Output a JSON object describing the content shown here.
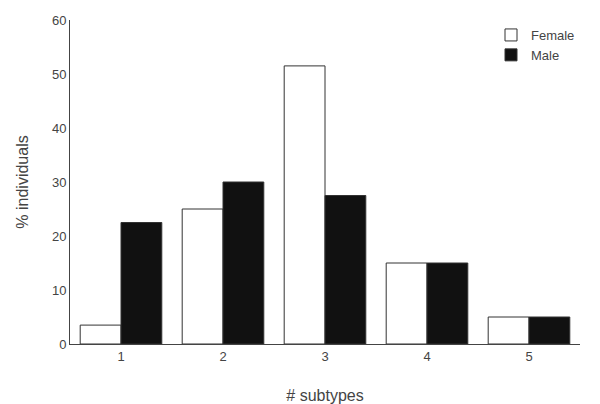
{
  "chart_data": {
    "type": "bar",
    "xlabel": "# subtypes",
    "ylabel": "% individuals",
    "categories": [
      "1",
      "2",
      "3",
      "4",
      "5"
    ],
    "series": [
      {
        "name": "Female",
        "color": "#ffffff",
        "values": [
          3.5,
          25.0,
          51.5,
          15.0,
          5.0
        ]
      },
      {
        "name": "Male",
        "color": "#111111",
        "values": [
          22.5,
          30.0,
          27.5,
          15.0,
          5.0
        ]
      }
    ],
    "ylim": [
      0,
      60
    ],
    "yticks": [
      0,
      10,
      20,
      30,
      40,
      50,
      60
    ],
    "grid": false,
    "legend": "upper right"
  }
}
